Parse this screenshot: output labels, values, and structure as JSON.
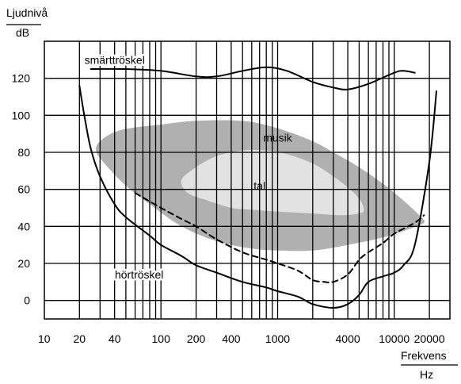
{
  "chart_data": {
    "type": "line",
    "xscale": "log",
    "xlim": [
      10,
      30000
    ],
    "ylim": [
      -10,
      140
    ],
    "ylabel": "Ljudnivå",
    "yunit": "dB",
    "xlabel": "Frekvens",
    "xunit": "Hz",
    "y_ticks": [
      0,
      20,
      40,
      60,
      80,
      100,
      120
    ],
    "x_tick_labels": [
      {
        "value": 10,
        "label": "10"
      },
      {
        "value": 20,
        "label": "20"
      },
      {
        "value": 40,
        "label": "40"
      },
      {
        "value": 100,
        "label": "100"
      },
      {
        "value": 200,
        "label": "200"
      },
      {
        "value": 400,
        "label": "400"
      },
      {
        "value": 1000,
        "label": "1000"
      },
      {
        "value": 4000,
        "label": "4000"
      },
      {
        "value": 10000,
        "label": "10000"
      },
      {
        "value": 20000,
        "label": "20000"
      }
    ],
    "x_gridlines": [
      20,
      30,
      40,
      50,
      60,
      70,
      80,
      90,
      100,
      200,
      300,
      400,
      500,
      600,
      700,
      800,
      900,
      1000,
      2000,
      3000,
      4000,
      5000,
      6000,
      7000,
      8000,
      9000,
      10000,
      20000
    ],
    "grid": true,
    "series": [
      {
        "name": "smärttröskel",
        "style": "solid",
        "points": [
          [
            25,
            125
          ],
          [
            50,
            125
          ],
          [
            100,
            124
          ],
          [
            200,
            121
          ],
          [
            300,
            121
          ],
          [
            500,
            124
          ],
          [
            800,
            126
          ],
          [
            1200,
            124
          ],
          [
            2000,
            118
          ],
          [
            3000,
            115
          ],
          [
            4000,
            114
          ],
          [
            6000,
            117
          ],
          [
            10000,
            123
          ],
          [
            12000,
            124
          ],
          [
            15000,
            123
          ]
        ]
      },
      {
        "name": "hörtröskel",
        "style": "solid",
        "points": [
          [
            20,
            116
          ],
          [
            22,
            100
          ],
          [
            25,
            82
          ],
          [
            30,
            67
          ],
          [
            40,
            52
          ],
          [
            50,
            45
          ],
          [
            80,
            35
          ],
          [
            100,
            30
          ],
          [
            150,
            24
          ],
          [
            200,
            19
          ],
          [
            300,
            15
          ],
          [
            500,
            10
          ],
          [
            800,
            7
          ],
          [
            1000,
            5
          ],
          [
            1500,
            2
          ],
          [
            2000,
            -2
          ],
          [
            3000,
            -4
          ],
          [
            4000,
            -2
          ],
          [
            5000,
            3
          ],
          [
            6000,
            10
          ],
          [
            8000,
            13
          ],
          [
            10000,
            15
          ],
          [
            12000,
            19
          ],
          [
            15000,
            30
          ],
          [
            20000,
            75
          ],
          [
            23000,
            113
          ]
        ]
      },
      {
        "name": "",
        "style": "dashed",
        "points": [
          [
            60,
            58
          ],
          [
            100,
            50
          ],
          [
            150,
            44
          ],
          [
            200,
            40
          ],
          [
            300,
            33
          ],
          [
            500,
            26
          ],
          [
            800,
            22
          ],
          [
            1000,
            20
          ],
          [
            1500,
            16
          ],
          [
            2000,
            11
          ],
          [
            2500,
            10
          ],
          [
            3000,
            10
          ],
          [
            4000,
            14
          ],
          [
            5000,
            22
          ],
          [
            6000,
            26
          ],
          [
            8000,
            31
          ],
          [
            10000,
            36
          ],
          [
            15000,
            42
          ],
          [
            18000,
            46
          ]
        ]
      }
    ],
    "regions": [
      {
        "name": "musik",
        "color": "#b0b0b0",
        "points": [
          [
            30,
            86
          ],
          [
            45,
            92
          ],
          [
            100,
            95
          ],
          [
            200,
            97
          ],
          [
            500,
            97
          ],
          [
            1000,
            93
          ],
          [
            2000,
            86
          ],
          [
            3000,
            80
          ],
          [
            5000,
            72
          ],
          [
            8000,
            63
          ],
          [
            12000,
            54
          ],
          [
            17000,
            45
          ],
          [
            18000,
            42
          ],
          [
            14000,
            39
          ],
          [
            8000,
            34
          ],
          [
            4000,
            30
          ],
          [
            2000,
            27
          ],
          [
            1000,
            27
          ],
          [
            600,
            28
          ],
          [
            300,
            32
          ],
          [
            150,
            40
          ],
          [
            80,
            52
          ],
          [
            50,
            62
          ],
          [
            35,
            72
          ],
          [
            28,
            80
          ]
        ]
      },
      {
        "name": "tal",
        "color": "#e2e2e2",
        "points": [
          [
            150,
            65
          ],
          [
            200,
            72
          ],
          [
            300,
            78
          ],
          [
            500,
            81
          ],
          [
            800,
            81
          ],
          [
            1200,
            79
          ],
          [
            2000,
            74
          ],
          [
            3000,
            67
          ],
          [
            4000,
            61
          ],
          [
            5000,
            55
          ],
          [
            5500,
            49
          ],
          [
            5000,
            47
          ],
          [
            3500,
            46
          ],
          [
            2000,
            47
          ],
          [
            1000,
            48
          ],
          [
            600,
            49
          ],
          [
            400,
            50
          ],
          [
            250,
            54
          ],
          [
            170,
            58
          ]
        ]
      }
    ],
    "annotations": [
      {
        "text": "smärttröskel",
        "x": 40,
        "y": 130
      },
      {
        "text": "musik",
        "x": 1000,
        "y": 88
      },
      {
        "text": "tal",
        "x": 700,
        "y": 62
      },
      {
        "text": "hörtröskel",
        "x": 65,
        "y": 14
      }
    ],
    "colors": {
      "background": "#ffffff",
      "axis": "#000000",
      "music_region": "#b0b0b0",
      "speech_region": "#e2e2e2"
    }
  }
}
